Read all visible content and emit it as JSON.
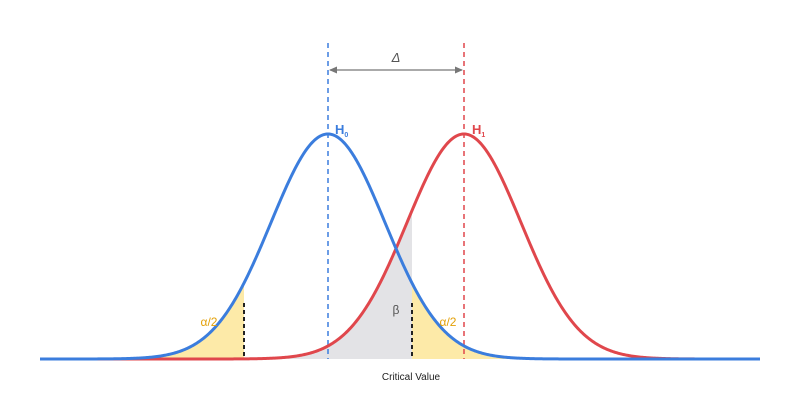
{
  "diagram": {
    "delta_label": "Δ",
    "h0_label": "H",
    "h0_sub": "0",
    "h1_label": "H",
    "h1_sub": "1",
    "alpha_left_label": "α/2",
    "alpha_right_label": "α/2",
    "beta_label": "β",
    "critical_label": "Critical Value"
  },
  "colors": {
    "h0_curve": "#3b7ddd",
    "h1_curve": "#e0474c",
    "alpha_fill": "#fdeaa8",
    "beta_fill": "#e3e3e6",
    "alpha_text": "#e3a008",
    "delta_arrow": "#777777",
    "critical_line": "#222222"
  }
}
